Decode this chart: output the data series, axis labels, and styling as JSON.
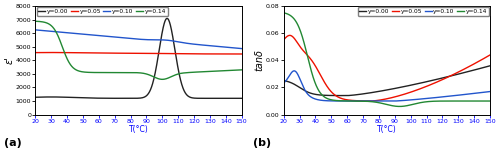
{
  "title_a": "(a)",
  "title_b": "(b)",
  "xlabel": "T(°C)",
  "ylabel_a": "ε'",
  "ylabel_b": "tanδ",
  "legend_labels": [
    "y=0.00",
    "y=0.05",
    "y=0.10",
    "y=0.14"
  ],
  "colors": [
    "#222222",
    "#ee1100",
    "#2255cc",
    "#228833"
  ],
  "xlim": [
    20,
    150
  ],
  "ylim_a": [
    0,
    8000
  ],
  "ylim_b": [
    0.0,
    0.08
  ],
  "yticks_a": [
    0,
    1000,
    2000,
    3000,
    4000,
    5000,
    6000,
    7000,
    8000
  ],
  "yticks_b": [
    0.0,
    0.02,
    0.04,
    0.06,
    0.08
  ],
  "xticks": [
    20,
    30,
    40,
    50,
    60,
    70,
    80,
    90,
    100,
    110,
    120,
    130,
    140,
    150
  ],
  "background_color": "#ffffff",
  "figsize": [
    5.0,
    1.55
  ],
  "dpi": 100
}
